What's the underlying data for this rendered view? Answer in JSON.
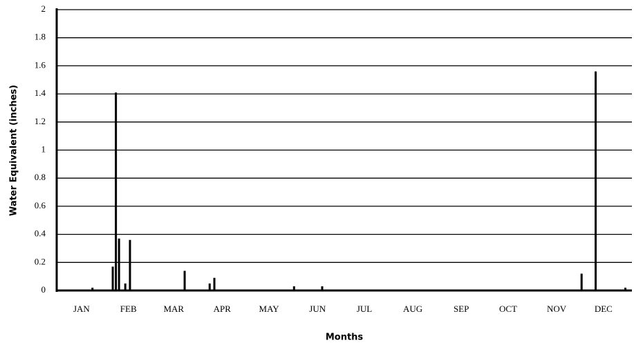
{
  "chart_data": {
    "type": "bar",
    "y_label": "Water Equivalent (inches)",
    "x_label": "Months",
    "x": [
      22,
      35,
      37,
      39,
      43,
      46,
      81,
      97,
      100,
      151,
      169,
      335,
      344,
      363
    ],
    "values": [
      0.02,
      0.17,
      1.41,
      0.37,
      0.05,
      0.36,
      0.14,
      0.05,
      0.09,
      0.03,
      0.03,
      0.12,
      1.56,
      0.02
    ],
    "color": "#000000",
    "xlim": [
      0,
      365
    ],
    "xticks": [
      {
        "value": 15,
        "label": "JAN"
      },
      {
        "value": 45,
        "label": "FEB"
      },
      {
        "value": 74,
        "label": "MAR"
      },
      {
        "value": 105,
        "label": "APR"
      },
      {
        "value": 135,
        "label": "MAY"
      },
      {
        "value": 166,
        "label": "JUN"
      },
      {
        "value": 196,
        "label": "JUL"
      },
      {
        "value": 227,
        "label": "AUG"
      },
      {
        "value": 258,
        "label": "SEP"
      },
      {
        "value": 288,
        "label": "OCT"
      },
      {
        "value": 319,
        "label": "NOV"
      },
      {
        "value": 349,
        "label": "DEC"
      }
    ],
    "ylim": [
      0,
      2
    ],
    "yticks": [
      0,
      0.2,
      0.4,
      0.6,
      0.8,
      1,
      1.2,
      1.4,
      1.6,
      1.8,
      2
    ],
    "grid": true
  }
}
